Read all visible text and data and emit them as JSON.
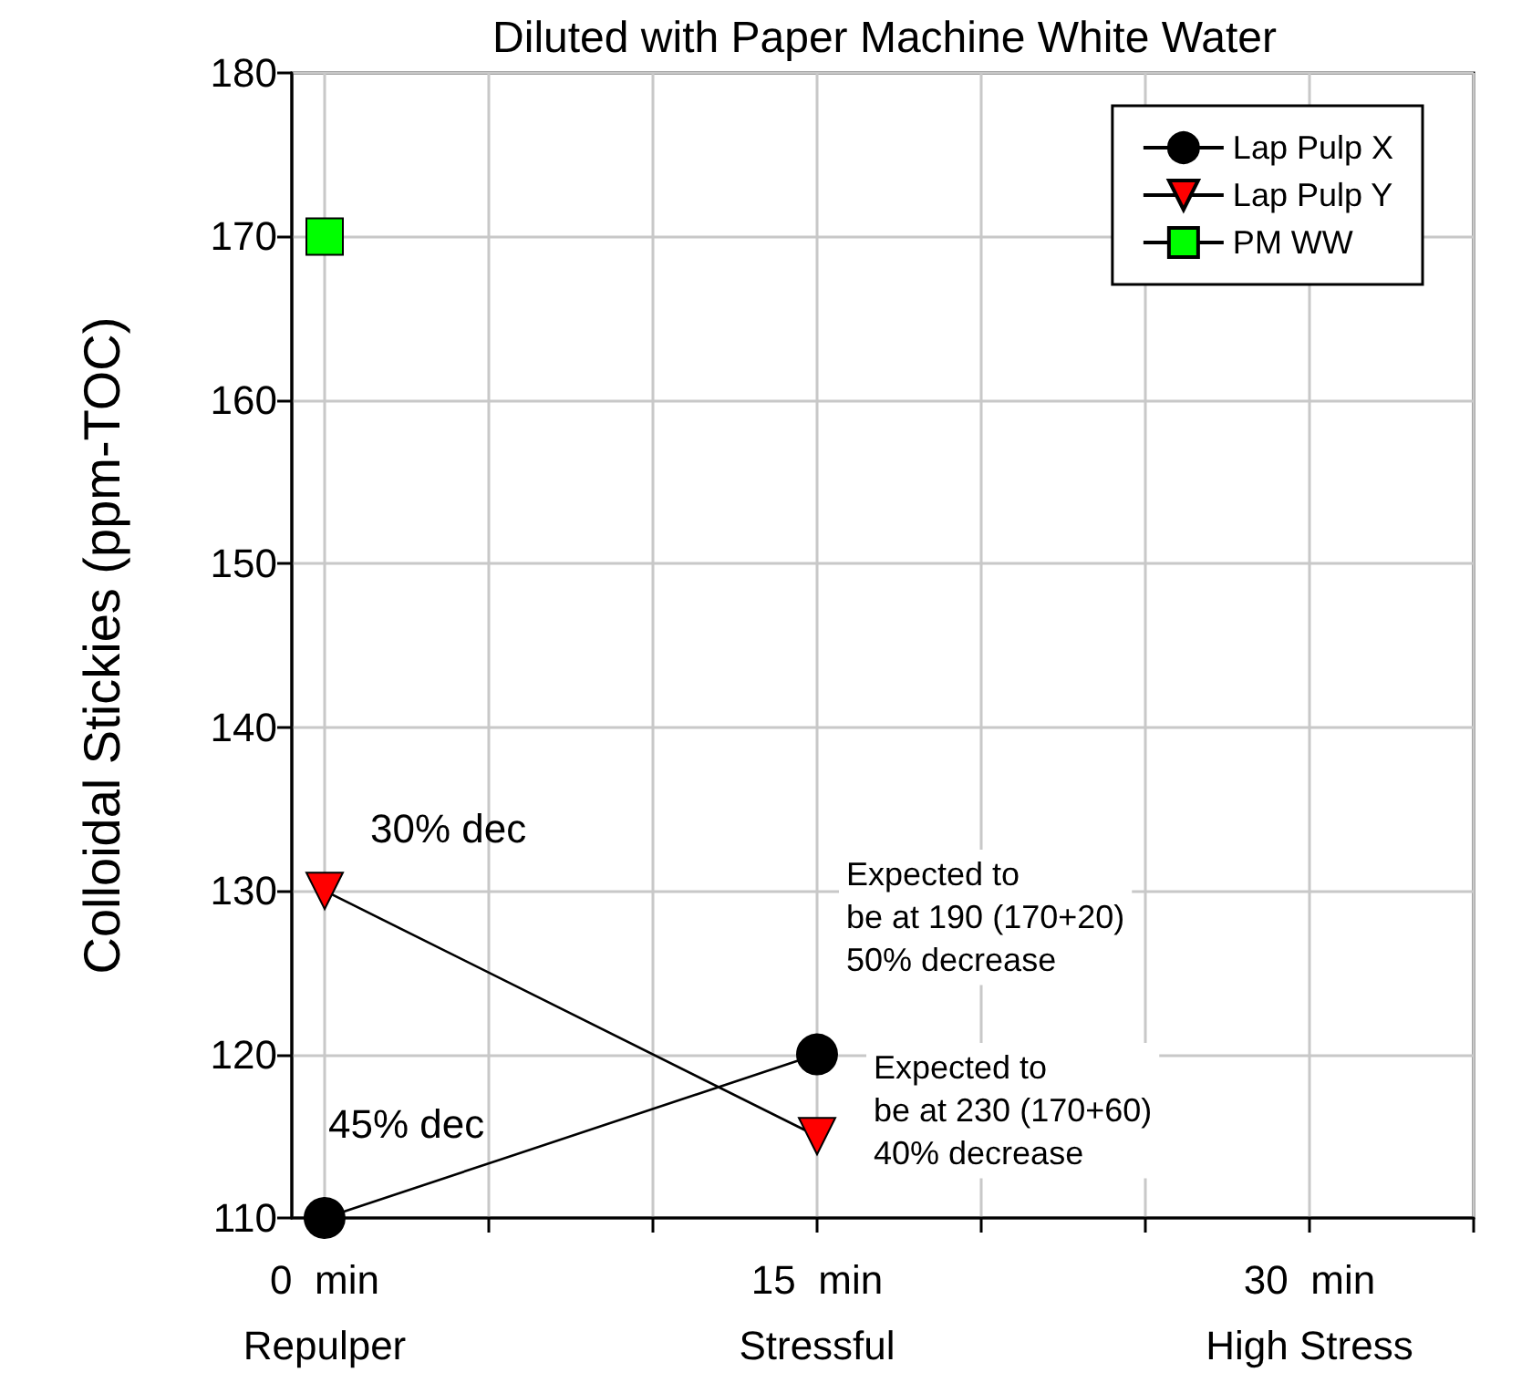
{
  "chart_data": {
    "type": "line",
    "title": "Diluted with Paper Machine White Water",
    "ylabel": "Colloidal Stickies (ppm-TOC)",
    "xlim": [
      -1,
      35
    ],
    "xticks": [
      {
        "value": 0,
        "label": "0  min\nRepulper"
      },
      {
        "value": 5,
        "label": null
      },
      {
        "value": 10,
        "label": null
      },
      {
        "value": 15,
        "label": "15  min\nStressful"
      },
      {
        "value": 20,
        "label": null
      },
      {
        "value": 25,
        "label": null
      },
      {
        "value": 30,
        "label": "30  min\nHigh Stress"
      },
      {
        "value": 35,
        "label": null
      }
    ],
    "ylim": [
      110,
      180
    ],
    "yticks": [
      110,
      120,
      130,
      140,
      150,
      160,
      170,
      180
    ],
    "grid": true,
    "legend": "top right",
    "x": [
      0,
      15
    ],
    "series": [
      {
        "name": "Lap Pulp X",
        "color": "#000000",
        "marker": "circle",
        "values": [
          110,
          120
        ]
      },
      {
        "name": "Lap Pulp Y",
        "color": "#ff0000",
        "marker": "triangle",
        "values": [
          130,
          115
        ]
      },
      {
        "name": "PM WW",
        "color": "#00ff00",
        "marker": "square",
        "values": [
          170,
          null
        ]
      }
    ],
    "annotations": [
      "30% dec",
      "45% dec",
      "Expected to\nbe at 190 (170+20)\n50% decrease",
      "Expected to\nbe at 230 (170+60)\n40% decrease"
    ]
  }
}
